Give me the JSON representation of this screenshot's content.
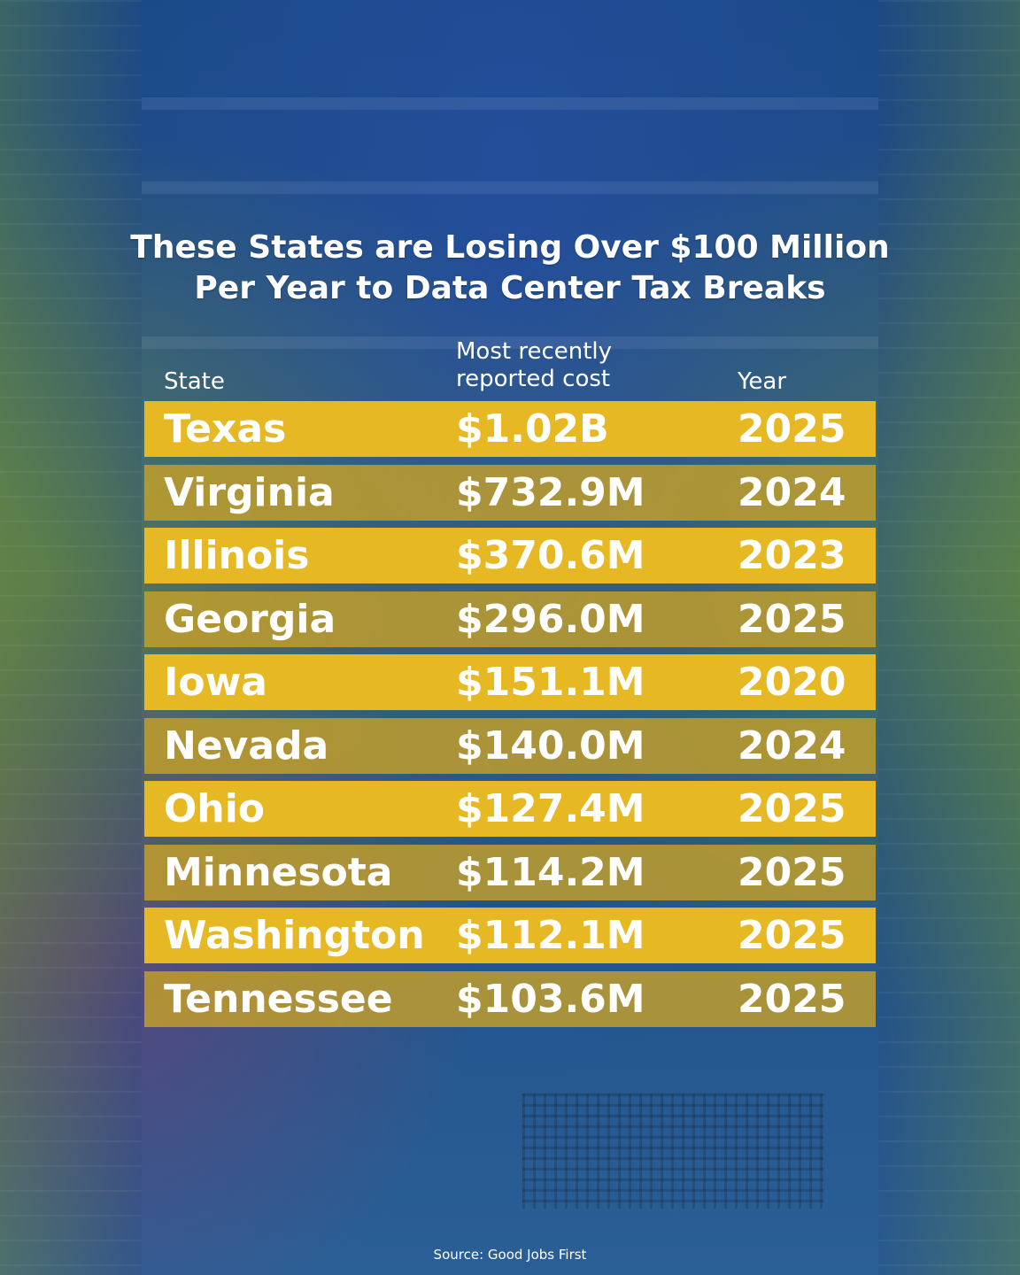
{
  "title": {
    "line1": "These States are Losing Over $100 Million",
    "line2": "Per Year to Data Center Tax Breaks"
  },
  "headers": {
    "state": "State",
    "cost_line1": "Most recently",
    "cost_line2": "reported cost",
    "year": "Year"
  },
  "rows": [
    {
      "state": "Texas",
      "cost": "$1.02B",
      "year": "2025"
    },
    {
      "state": "Virginia",
      "cost": "$732.9M",
      "year": "2024"
    },
    {
      "state": "Illinois",
      "cost": "$370.6M",
      "year": "2023"
    },
    {
      "state": "Georgia",
      "cost": "$296.0M",
      "year": "2025"
    },
    {
      "state": "Iowa",
      "cost": "$151.1M",
      "year": "2020"
    },
    {
      "state": "Nevada",
      "cost": "$140.0M",
      "year": "2024"
    },
    {
      "state": "Ohio",
      "cost": "$127.4M",
      "year": "2025"
    },
    {
      "state": "Minnesota",
      "cost": "$114.2M",
      "year": "2025"
    },
    {
      "state": "Washington",
      "cost": "$112.1M",
      "year": "2025"
    },
    {
      "state": "Tennessee",
      "cost": "$103.6M",
      "year": "2025"
    }
  ],
  "colors": {
    "row_primary": "#e6b823",
    "row_secondary": "#c6a028",
    "text": "#ffffff",
    "background": "#1f4f86"
  },
  "source": "Source: Good Jobs First"
}
